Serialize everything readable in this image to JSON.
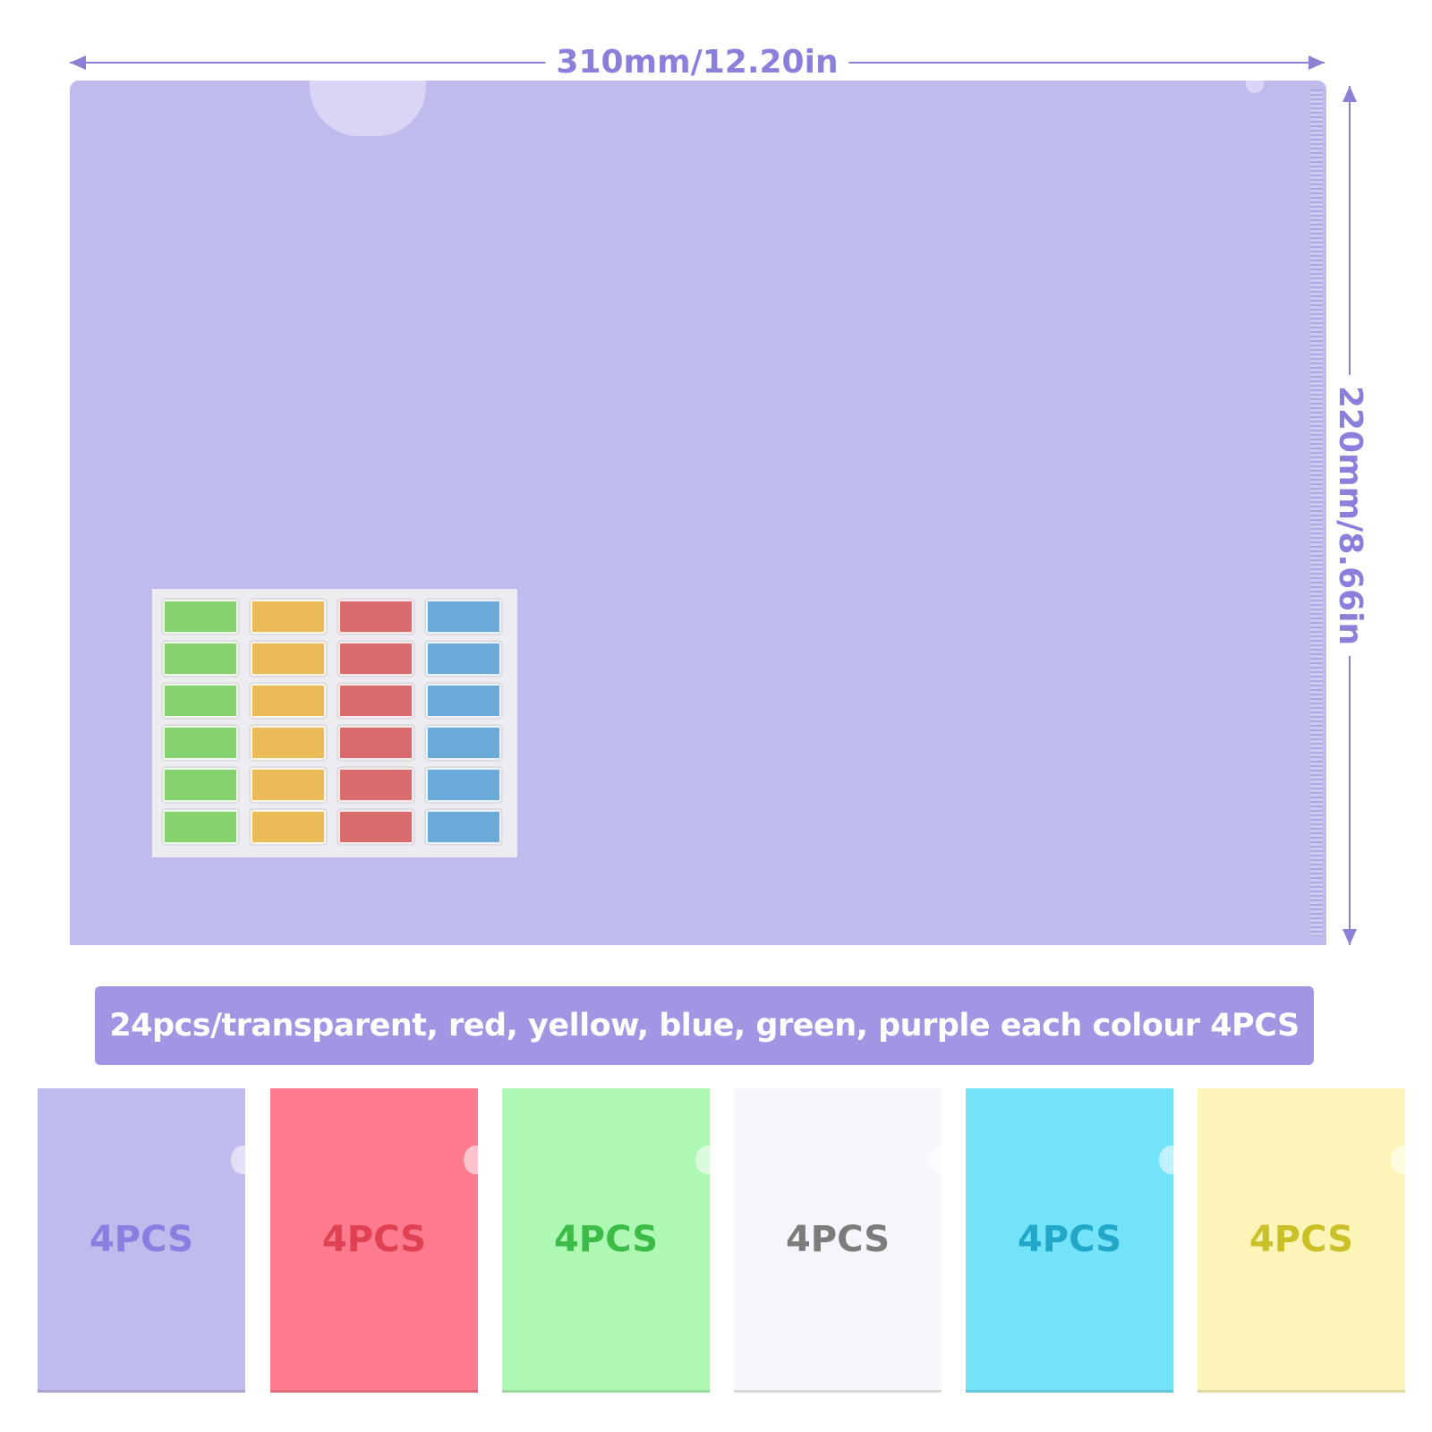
{
  "dimensions": {
    "width_label": "310mm/12.20in",
    "height_label": "220mm/8.66in"
  },
  "main_folder": {
    "color": "#bfbbec"
  },
  "label_sheet": {
    "columns": [
      "#85d36e",
      "#ebbb57",
      "#d96a6e",
      "#6aaad8"
    ],
    "rows": 6
  },
  "banner": {
    "text": "24pcs/transparent, red, yellow, blue, green, purple each colour 4PCS",
    "color": "#a096e3"
  },
  "folders": [
    {
      "label": "4PCS",
      "color": "#bfbbec",
      "text_color": "#8a7fe0"
    },
    {
      "label": "4PCS",
      "color": "#fd7b8c",
      "text_color": "#e04152"
    },
    {
      "label": "4PCS",
      "color": "#adf9b4",
      "text_color": "#3cbb47"
    },
    {
      "label": "4PCS",
      "color": "#f4f6fc",
      "text_color": "#7c7c7c"
    },
    {
      "label": "4PCS",
      "color": "#73e3fa",
      "text_color": "#23a7c8"
    },
    {
      "label": "4PCS",
      "color": "#fdf5b8",
      "text_color": "#cac12a"
    }
  ]
}
